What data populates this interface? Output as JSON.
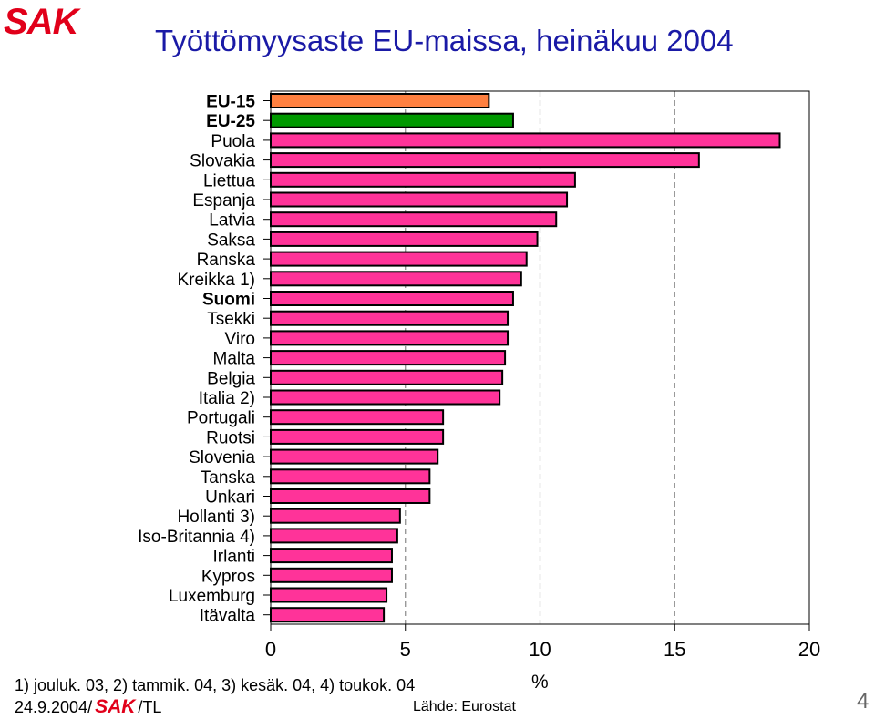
{
  "header": {
    "logo_text": "SAK",
    "title": "Työttömyysaste EU-maissa, heinäkuu 2004"
  },
  "chart_data": {
    "type": "bar",
    "orientation": "horizontal",
    "categories": [
      "EU-15",
      "EU-25",
      "Puola",
      "Slovakia",
      "Liettua",
      "Espanja",
      "Latvia",
      "Saksa",
      "Ranska",
      "Kreikka 1)",
      "Suomi",
      "Tsekki",
      "Viro",
      "Malta",
      "Belgia",
      "Italia 2)",
      "Portugali",
      "Ruotsi",
      "Slovenia",
      "Tanska",
      "Unkari",
      "Hollanti 3)",
      "Iso-Britannia 4)",
      "Irlanti",
      "Kypros",
      "Luxemburg",
      "Itävalta"
    ],
    "bold_categories": [
      "EU-15",
      "EU-25",
      "Suomi"
    ],
    "values": [
      8.1,
      9.0,
      18.9,
      15.9,
      11.3,
      11.0,
      10.6,
      9.9,
      9.5,
      9.3,
      9.0,
      8.8,
      8.8,
      8.7,
      8.6,
      8.5,
      6.4,
      6.4,
      6.2,
      5.9,
      5.9,
      4.8,
      4.7,
      4.5,
      4.5,
      4.3,
      4.2
    ],
    "bar_colors": {
      "EU-15": "#ff8040",
      "EU-25": "#009900",
      "default": "#ff3399"
    },
    "xlabel": "%",
    "xlim": [
      0,
      20
    ],
    "xticks": [
      0,
      5,
      10,
      15,
      20
    ],
    "gridlines": "dashed vertical at 5, 10, 15"
  },
  "footer": {
    "footnote": "1) jouluk. 03, 2) tammik. 04, 3) kesäk. 04, 4) toukok. 04",
    "date": "24.9.2004/",
    "logo_text": "SAK",
    "author": "/TL",
    "source": "Lähde: Eurostat",
    "page_number": "4"
  }
}
